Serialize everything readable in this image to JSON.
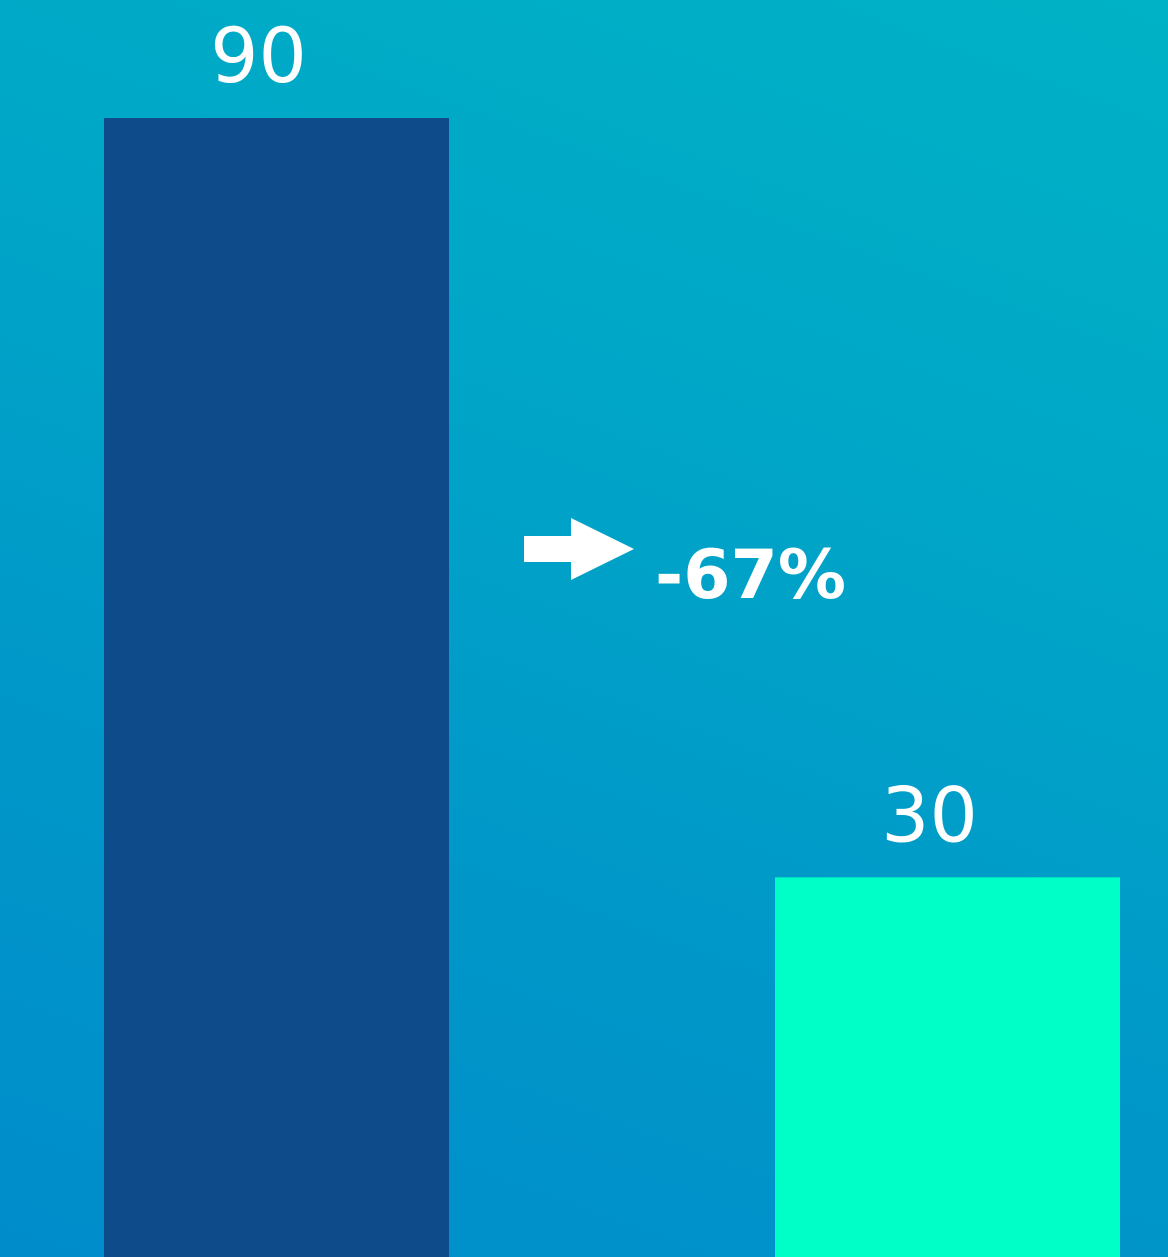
{
  "chart_data": {
    "type": "bar",
    "categories": [
      "",
      ""
    ],
    "values": [
      90,
      30
    ],
    "data_labels": [
      "90",
      "30"
    ],
    "colors": [
      "#0e4b8a",
      "#00ffc6"
    ],
    "ylim": [
      0,
      90
    ],
    "title": "",
    "xlabel": "",
    "ylabel": "",
    "grid": false,
    "legend": "none",
    "annotation": {
      "text": "-67%",
      "icon": "arrow-right-icon"
    }
  }
}
